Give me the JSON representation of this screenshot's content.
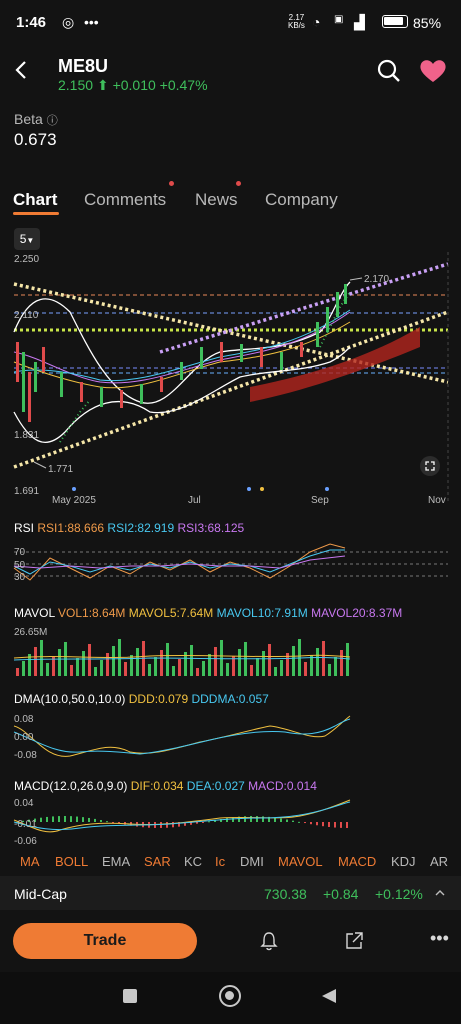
{
  "status": {
    "time": "1:46",
    "speed_top": "2.17",
    "speed_unit": "KB/s",
    "battery": "85%"
  },
  "header": {
    "symbol": "ME8U",
    "price": "2.150",
    "change": "+0.010",
    "change_pct": "+0.47%"
  },
  "beta": {
    "label": "Beta",
    "value": "0.673"
  },
  "tabs": [
    {
      "label": "Chart"
    },
    {
      "label": "Comments"
    },
    {
      "label": "News"
    },
    {
      "label": "Company"
    }
  ],
  "interval": "5",
  "main_chart": {
    "y_ticks": [
      "2.250",
      "2.110",
      "1.831",
      "1.691"
    ],
    "high_label": "2.170",
    "low_label": "1.771",
    "x_ticks": [
      "May 2025",
      "Jul",
      "Sep",
      "Nov"
    ]
  },
  "rsi": {
    "name": "RSI",
    "rsi1": "RSI1:88.666",
    "rsi2": "RSI2:82.919",
    "rsi3": "RSI3:68.125",
    "ticks": [
      "70",
      "50",
      "30"
    ]
  },
  "mavol": {
    "name": "MAVOL",
    "vol1": "VOL1:8.64M",
    "ma5": "MAVOL5:7.64M",
    "ma10": "MAVOL10:7.91M",
    "ma20": "MAVOL20:8.37M",
    "top_tick": "26.65M"
  },
  "dma": {
    "name": "DMA(10.0,50.0,10.0)",
    "ddd": "DDD:0.079",
    "dddma": "DDDMA:0.057",
    "ticks": [
      "0.08",
      "0.00",
      "-0.08"
    ]
  },
  "macd": {
    "name": "MACD(12.0,26.0,9.0)",
    "dif": "DIF:0.034",
    "dea": "DEA:0.027",
    "macd": "MACD:0.014",
    "ticks": [
      "0.04",
      "-0.01",
      "-0.06"
    ]
  },
  "indicator_tabs": [
    "MA",
    "BOLL",
    "EMA",
    "SAR",
    "KC",
    "Ic",
    "DMI",
    "MAVOL",
    "MACD",
    "KDJ",
    "AR"
  ],
  "index_bar": {
    "name": "Mid-Cap",
    "value": "730.38",
    "change": "+0.84",
    "change_pct": "+0.12%"
  },
  "trade_label": "Trade",
  "colors": {
    "accent": "#ef7b34",
    "up": "#3fbf5c",
    "down": "#e04b4b"
  }
}
